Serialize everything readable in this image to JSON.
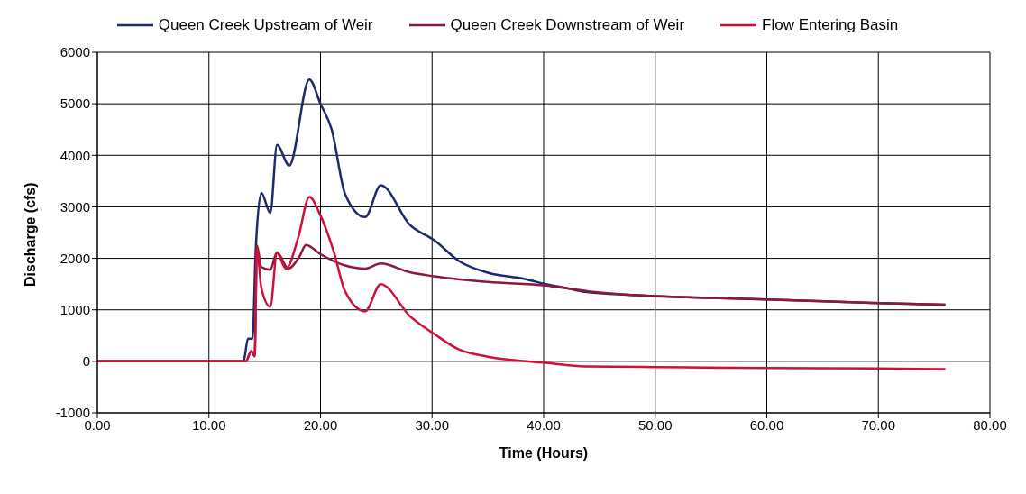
{
  "chart_data": {
    "type": "line",
    "xlabel": "Time (Hours)",
    "ylabel": "Discharge (cfs)",
    "xlim": [
      0,
      80
    ],
    "xticks": [
      {
        "value": 0,
        "label": "0.00"
      },
      {
        "value": 10,
        "label": "10.00"
      },
      {
        "value": 20,
        "label": "20.00"
      },
      {
        "value": 30,
        "label": "30.00"
      },
      {
        "value": 40,
        "label": "40.00"
      },
      {
        "value": 50,
        "label": "50.00"
      },
      {
        "value": 60,
        "label": "60.00"
      },
      {
        "value": 70,
        "label": "70.00"
      },
      {
        "value": 80,
        "label": "80.00"
      }
    ],
    "ylim": [
      -1000,
      6000
    ],
    "yticks": [
      -1000,
      0,
      1000,
      2000,
      3000,
      4000,
      5000,
      6000
    ],
    "grid": true,
    "legend": "top",
    "marker": "none",
    "line_style": "solid",
    "series": [
      {
        "name": "Queen Creek Upstream of Weir",
        "color": "#1f2a6e",
        "x": [
          0,
          10,
          13.1,
          13.5,
          13.9,
          14.2,
          14.7,
          15.5,
          16.1,
          17.2,
          19,
          20,
          21,
          22.2,
          24,
          25.4,
          28,
          30.2,
          32.4,
          35,
          38.3,
          40.2,
          42.1,
          43.7,
          48,
          55,
          60,
          70,
          76
        ],
        "values": [
          0,
          0,
          0,
          440,
          440,
          2200,
          3270,
          2880,
          4200,
          3800,
          5470,
          5000,
          4500,
          3250,
          2800,
          3420,
          2650,
          2350,
          1950,
          1720,
          1600,
          1500,
          1420,
          1350,
          1290,
          1230,
          1200,
          1130,
          1100
        ]
      },
      {
        "name": "Queen Creek Downstream of Weir",
        "color": "#8b1a3a",
        "x": [
          0,
          10,
          13.3,
          13.8,
          14.1,
          14.3,
          14.7,
          15.5,
          16.1,
          17.1,
          18.1,
          18.7,
          20,
          22.2,
          24,
          25.4,
          28,
          30.2,
          35,
          40.2,
          44,
          47.8,
          55,
          60,
          70,
          76
        ],
        "values": [
          0,
          0,
          0,
          200,
          100,
          2250,
          1830,
          1780,
          2120,
          1800,
          2030,
          2260,
          2080,
          1860,
          1800,
          1900,
          1730,
          1650,
          1540,
          1470,
          1360,
          1290,
          1230,
          1200,
          1130,
          1100
        ]
      },
      {
        "name": "Flow Entering Basin",
        "color": "#d0103a",
        "x": [
          0,
          10,
          13.3,
          13.8,
          14.1,
          14.3,
          14.7,
          15.5,
          16.1,
          16.9,
          18,
          19,
          20,
          21.2,
          22.2,
          24,
          25.4,
          28,
          30.2,
          32.4,
          35,
          40.2,
          43.7,
          50,
          60,
          70,
          76
        ],
        "values": [
          0,
          0,
          0,
          200,
          100,
          2200,
          1420,
          1060,
          2100,
          1800,
          2400,
          3190,
          2830,
          2120,
          1360,
          970,
          1500,
          880,
          530,
          230,
          90,
          -30,
          -100,
          -110,
          -130,
          -140,
          -150
        ]
      }
    ]
  }
}
